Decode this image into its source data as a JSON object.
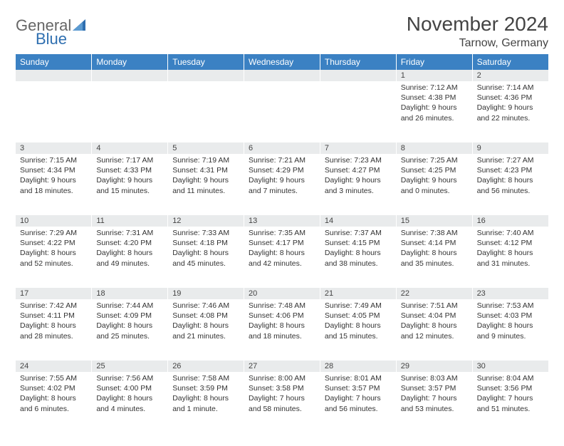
{
  "colors": {
    "header_bg": "#3b81c3",
    "header_text": "#ffffff",
    "daynum_bg": "#e9ebec",
    "page_bg": "#ffffff",
    "text": "#333333",
    "logo_gray": "#666666",
    "logo_blue": "#2f6fb0"
  },
  "logo": {
    "word1": "General",
    "word2": "Blue"
  },
  "title": "November 2024",
  "subtitle": "Tarnow, Germany",
  "weekdays": [
    "Sunday",
    "Monday",
    "Tuesday",
    "Wednesday",
    "Thursday",
    "Friday",
    "Saturday"
  ],
  "weeks": [
    [
      {
        "n": "",
        "sr": "",
        "ss": "",
        "dl": ""
      },
      {
        "n": "",
        "sr": "",
        "ss": "",
        "dl": ""
      },
      {
        "n": "",
        "sr": "",
        "ss": "",
        "dl": ""
      },
      {
        "n": "",
        "sr": "",
        "ss": "",
        "dl": ""
      },
      {
        "n": "",
        "sr": "",
        "ss": "",
        "dl": ""
      },
      {
        "n": "1",
        "sr": "Sunrise: 7:12 AM",
        "ss": "Sunset: 4:38 PM",
        "dl": "Daylight: 9 hours and 26 minutes."
      },
      {
        "n": "2",
        "sr": "Sunrise: 7:14 AM",
        "ss": "Sunset: 4:36 PM",
        "dl": "Daylight: 9 hours and 22 minutes."
      }
    ],
    [
      {
        "n": "3",
        "sr": "Sunrise: 7:15 AM",
        "ss": "Sunset: 4:34 PM",
        "dl": "Daylight: 9 hours and 18 minutes."
      },
      {
        "n": "4",
        "sr": "Sunrise: 7:17 AM",
        "ss": "Sunset: 4:33 PM",
        "dl": "Daylight: 9 hours and 15 minutes."
      },
      {
        "n": "5",
        "sr": "Sunrise: 7:19 AM",
        "ss": "Sunset: 4:31 PM",
        "dl": "Daylight: 9 hours and 11 minutes."
      },
      {
        "n": "6",
        "sr": "Sunrise: 7:21 AM",
        "ss": "Sunset: 4:29 PM",
        "dl": "Daylight: 9 hours and 7 minutes."
      },
      {
        "n": "7",
        "sr": "Sunrise: 7:23 AM",
        "ss": "Sunset: 4:27 PM",
        "dl": "Daylight: 9 hours and 3 minutes."
      },
      {
        "n": "8",
        "sr": "Sunrise: 7:25 AM",
        "ss": "Sunset: 4:25 PM",
        "dl": "Daylight: 9 hours and 0 minutes."
      },
      {
        "n": "9",
        "sr": "Sunrise: 7:27 AM",
        "ss": "Sunset: 4:23 PM",
        "dl": "Daylight: 8 hours and 56 minutes."
      }
    ],
    [
      {
        "n": "10",
        "sr": "Sunrise: 7:29 AM",
        "ss": "Sunset: 4:22 PM",
        "dl": "Daylight: 8 hours and 52 minutes."
      },
      {
        "n": "11",
        "sr": "Sunrise: 7:31 AM",
        "ss": "Sunset: 4:20 PM",
        "dl": "Daylight: 8 hours and 49 minutes."
      },
      {
        "n": "12",
        "sr": "Sunrise: 7:33 AM",
        "ss": "Sunset: 4:18 PM",
        "dl": "Daylight: 8 hours and 45 minutes."
      },
      {
        "n": "13",
        "sr": "Sunrise: 7:35 AM",
        "ss": "Sunset: 4:17 PM",
        "dl": "Daylight: 8 hours and 42 minutes."
      },
      {
        "n": "14",
        "sr": "Sunrise: 7:37 AM",
        "ss": "Sunset: 4:15 PM",
        "dl": "Daylight: 8 hours and 38 minutes."
      },
      {
        "n": "15",
        "sr": "Sunrise: 7:38 AM",
        "ss": "Sunset: 4:14 PM",
        "dl": "Daylight: 8 hours and 35 minutes."
      },
      {
        "n": "16",
        "sr": "Sunrise: 7:40 AM",
        "ss": "Sunset: 4:12 PM",
        "dl": "Daylight: 8 hours and 31 minutes."
      }
    ],
    [
      {
        "n": "17",
        "sr": "Sunrise: 7:42 AM",
        "ss": "Sunset: 4:11 PM",
        "dl": "Daylight: 8 hours and 28 minutes."
      },
      {
        "n": "18",
        "sr": "Sunrise: 7:44 AM",
        "ss": "Sunset: 4:09 PM",
        "dl": "Daylight: 8 hours and 25 minutes."
      },
      {
        "n": "19",
        "sr": "Sunrise: 7:46 AM",
        "ss": "Sunset: 4:08 PM",
        "dl": "Daylight: 8 hours and 21 minutes."
      },
      {
        "n": "20",
        "sr": "Sunrise: 7:48 AM",
        "ss": "Sunset: 4:06 PM",
        "dl": "Daylight: 8 hours and 18 minutes."
      },
      {
        "n": "21",
        "sr": "Sunrise: 7:49 AM",
        "ss": "Sunset: 4:05 PM",
        "dl": "Daylight: 8 hours and 15 minutes."
      },
      {
        "n": "22",
        "sr": "Sunrise: 7:51 AM",
        "ss": "Sunset: 4:04 PM",
        "dl": "Daylight: 8 hours and 12 minutes."
      },
      {
        "n": "23",
        "sr": "Sunrise: 7:53 AM",
        "ss": "Sunset: 4:03 PM",
        "dl": "Daylight: 8 hours and 9 minutes."
      }
    ],
    [
      {
        "n": "24",
        "sr": "Sunrise: 7:55 AM",
        "ss": "Sunset: 4:02 PM",
        "dl": "Daylight: 8 hours and 6 minutes."
      },
      {
        "n": "25",
        "sr": "Sunrise: 7:56 AM",
        "ss": "Sunset: 4:00 PM",
        "dl": "Daylight: 8 hours and 4 minutes."
      },
      {
        "n": "26",
        "sr": "Sunrise: 7:58 AM",
        "ss": "Sunset: 3:59 PM",
        "dl": "Daylight: 8 hours and 1 minute."
      },
      {
        "n": "27",
        "sr": "Sunrise: 8:00 AM",
        "ss": "Sunset: 3:58 PM",
        "dl": "Daylight: 7 hours and 58 minutes."
      },
      {
        "n": "28",
        "sr": "Sunrise: 8:01 AM",
        "ss": "Sunset: 3:57 PM",
        "dl": "Daylight: 7 hours and 56 minutes."
      },
      {
        "n": "29",
        "sr": "Sunrise: 8:03 AM",
        "ss": "Sunset: 3:57 PM",
        "dl": "Daylight: 7 hours and 53 minutes."
      },
      {
        "n": "30",
        "sr": "Sunrise: 8:04 AM",
        "ss": "Sunset: 3:56 PM",
        "dl": "Daylight: 7 hours and 51 minutes."
      }
    ]
  ]
}
